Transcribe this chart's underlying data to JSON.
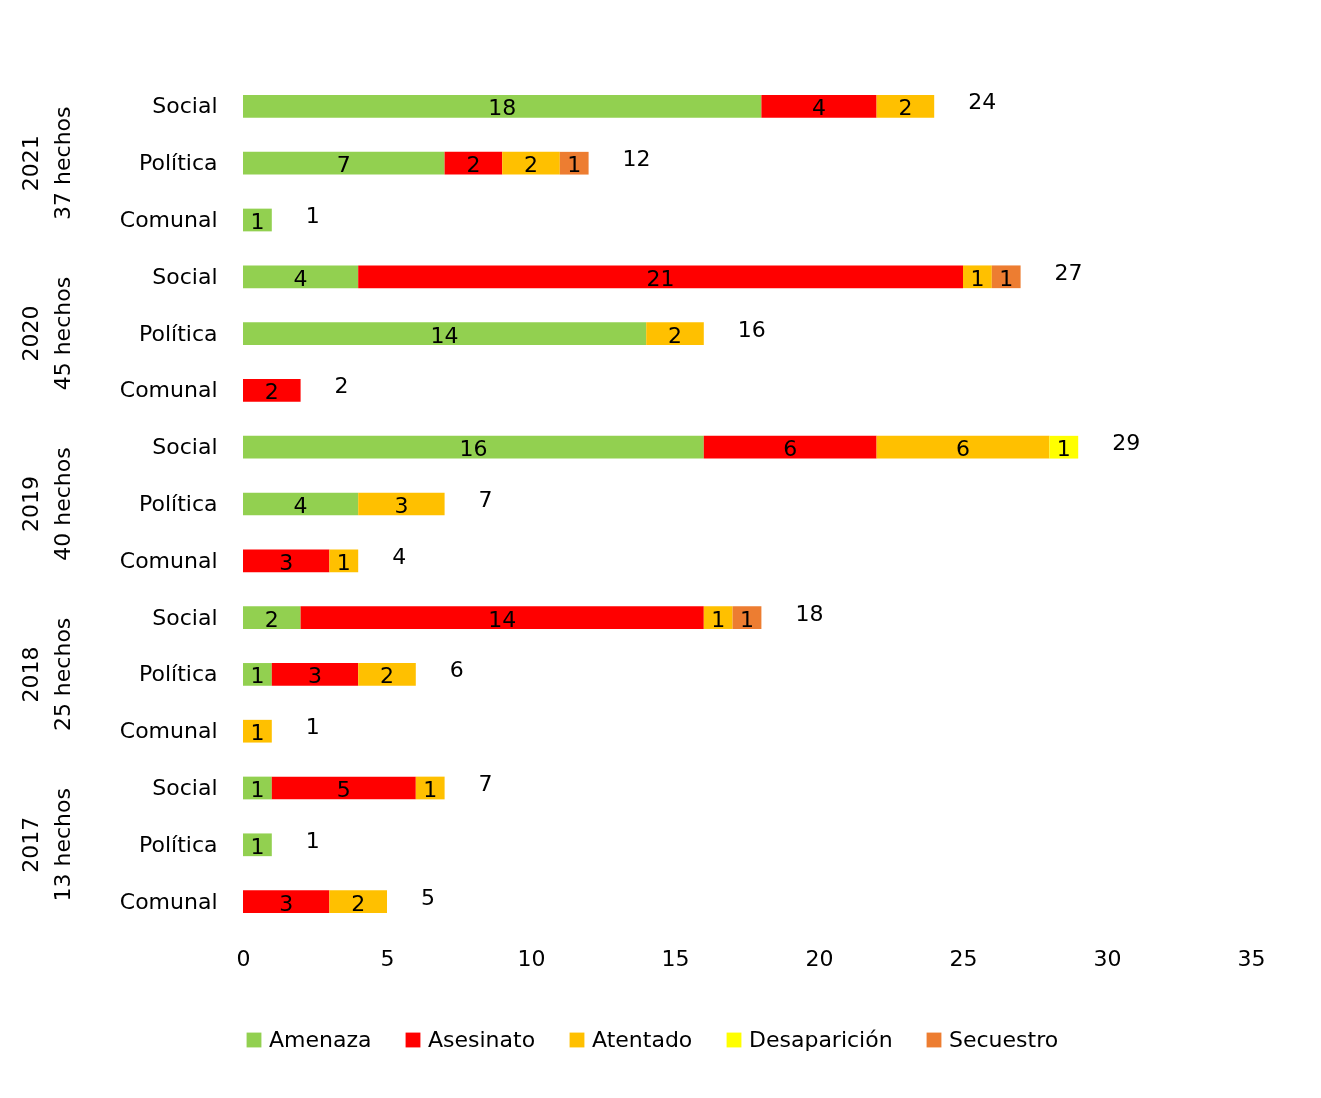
{
  "chart_data": {
    "type": "bar",
    "orientation": "horizontal",
    "stacked": true,
    "data_labels": true,
    "grid": false,
    "legend": "bottom",
    "categories": [
      "Social",
      "Política",
      "Comunal",
      "Social",
      "Política",
      "Comunal",
      "Social",
      "Política",
      "Comunal",
      "Social",
      "Política",
      "Comunal",
      "Social",
      "Política",
      "Comunal"
    ],
    "series": [
      {
        "name": "Amenaza",
        "color": "#92d050",
        "values": [
          18,
          7,
          1,
          4,
          14,
          null,
          16,
          4,
          null,
          2,
          1,
          null,
          1,
          1,
          null
        ]
      },
      {
        "name": "Asesinato",
        "color": "#ff0000",
        "values": [
          4,
          2,
          null,
          21,
          null,
          2,
          6,
          null,
          3,
          14,
          3,
          null,
          5,
          null,
          3
        ]
      },
      {
        "name": "Atentado",
        "color": "#ffc000",
        "values": [
          2,
          2,
          null,
          1,
          2,
          null,
          6,
          3,
          1,
          1,
          2,
          1,
          1,
          null,
          2
        ]
      },
      {
        "name": "Desaparición",
        "color": "#ffff00",
        "values": [
          null,
          null,
          null,
          null,
          null,
          null,
          1,
          null,
          null,
          null,
          null,
          null,
          null,
          null,
          null
        ]
      },
      {
        "name": "Secuestro",
        "color": "#ed7d31",
        "values": [
          null,
          1,
          null,
          1,
          null,
          null,
          null,
          null,
          null,
          1,
          null,
          null,
          null,
          null,
          null
        ]
      }
    ],
    "totals": [
      "24",
      "12",
      "1",
      "27",
      "16",
      "2",
      "29",
      "7",
      "4",
      "18",
      "6",
      "1",
      "7",
      "1",
      "5"
    ],
    "annotations": [
      "2021",
      "37 hechos",
      "2020",
      "45 hechos",
      "2019",
      "40 hechos",
      "2018",
      "25 hechos",
      "2017",
      "13 hechos"
    ],
    "xlim": [
      0,
      35
    ],
    "xticks": [
      0,
      5,
      10,
      15,
      20,
      25,
      30,
      35
    ]
  }
}
